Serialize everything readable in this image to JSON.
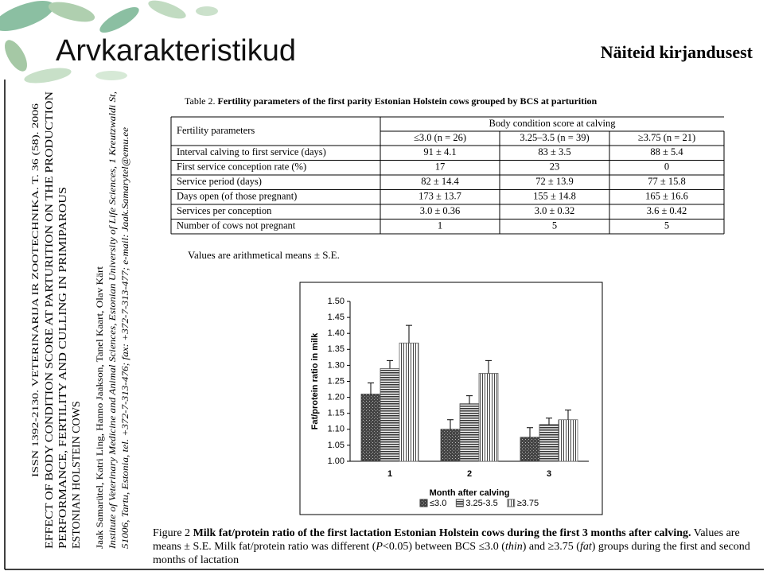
{
  "header": {
    "title": "Arvkarakteristikud",
    "subtitle": "Näiteid kirjandusest"
  },
  "article": {
    "journal": "ISSN 1392-2130. VETERINARIJA IR ZOOTECHNIKA. T. 36 (58). 2006",
    "title_lines": [
      "EFFECT OF BODY CONDITION SCORE AT PARTURITION ON THE PRODUCTION",
      "PERFORMANCE, FERTILITY AND CULLING IN PRIMIPAROUS",
      "ESTONIAN HOLSTEIN COWS"
    ],
    "authors": "Jaak Samarütel, Katri Ling, Hanno Jaakson, Tanel Kaart, Olav Kärt",
    "affiliation": "Institute of Veterinary Medicine and Animal Sciences, Estonian University of Life Sciences, 1 Kreutzwaldi St,",
    "address": "51006, Tartu, Estonia, tel. +372-7-313-476; fax: +372-7-313-477; e-mail: Jaak.Samarytel@emu.ee"
  },
  "table": {
    "label": "Table 2.",
    "caption": "Fertility parameters of the first parity Estonian Holstein cows grouped by BCS at parturition",
    "row_header": "Fertility parameters",
    "group_header": "Body condition score at calving",
    "columns": [
      "≤3.0 (n = 26)",
      "3.25–3.5 (n = 39)",
      "≥3.75 (n = 21)"
    ],
    "rows": [
      [
        "Interval calving to first service (days)",
        "91 ± 4.1",
        "83 ± 3.5",
        "88 ± 5.4"
      ],
      [
        "First service conception rate (%)",
        "17",
        "23",
        "0"
      ],
      [
        "Service period (days)",
        "82 ± 14.4",
        "72 ± 13.9",
        "77 ± 15.8"
      ],
      [
        "Days open (of those pregnant)",
        "173 ± 13.7",
        "155 ± 14.8",
        "165 ± 16.6"
      ],
      [
        "Services per conception",
        "3.0 ± 0.36",
        "3.0 ± 0.32",
        "3.6 ± 0.42"
      ],
      [
        "Number of cows not pregnant",
        "1",
        "5",
        "5"
      ]
    ],
    "note": "Values are arithmetical means ± S.E."
  },
  "chart_data": {
    "type": "bar",
    "y_label": "Fat/protein ratio in milk",
    "x_label": "Month after calving",
    "categories": [
      "1",
      "2",
      "3"
    ],
    "series": [
      {
        "name": "≤3.0",
        "color": "#333333",
        "values": [
          1.21,
          1.1,
          1.075
        ],
        "errors": [
          0.035,
          0.03,
          0.03
        ]
      },
      {
        "name": "3.25-3.5",
        "color": "#555555",
        "values": [
          1.29,
          1.18,
          1.115
        ],
        "errors": [
          0.025,
          0.025,
          0.02
        ]
      },
      {
        "name": "≥3.75",
        "color": "#666666",
        "values": [
          1.37,
          1.275,
          1.13
        ],
        "errors": [
          0.055,
          0.04,
          0.03
        ]
      }
    ],
    "ylim": [
      1.0,
      1.5
    ],
    "yticks": [
      {
        "value": 1.0,
        "label": "1.00"
      },
      {
        "value": 1.05,
        "label": "1.05"
      },
      {
        "value": 1.1,
        "label": "1.10"
      },
      {
        "value": 1.15,
        "label": "1.15"
      },
      {
        "value": 1.2,
        "label": "1.20"
      },
      {
        "value": 1.25,
        "label": "1.25"
      },
      {
        "value": 1.3,
        "label": "1.30"
      },
      {
        "value": 1.35,
        "label": "1.35"
      },
      {
        "value": 1.4,
        "label": "1.40"
      },
      {
        "value": 1.45,
        "label": "1.45"
      },
      {
        "value": 1.5,
        "label": "1.50"
      }
    ]
  },
  "figure_caption": {
    "label": "Figure 2",
    "title": "Milk fat/protein ratio of the first lactation Estonian Holstein cows during the first 3 months after calving.",
    "parts": [
      "Values are means ± S.E. Milk fat/protein ratio was different (",
      "P",
      "<0.05) between BCS ≤3.0 (",
      "thin",
      ") and ≥3.75 (",
      "fat",
      ") groups during the first and second months of lactation"
    ]
  }
}
